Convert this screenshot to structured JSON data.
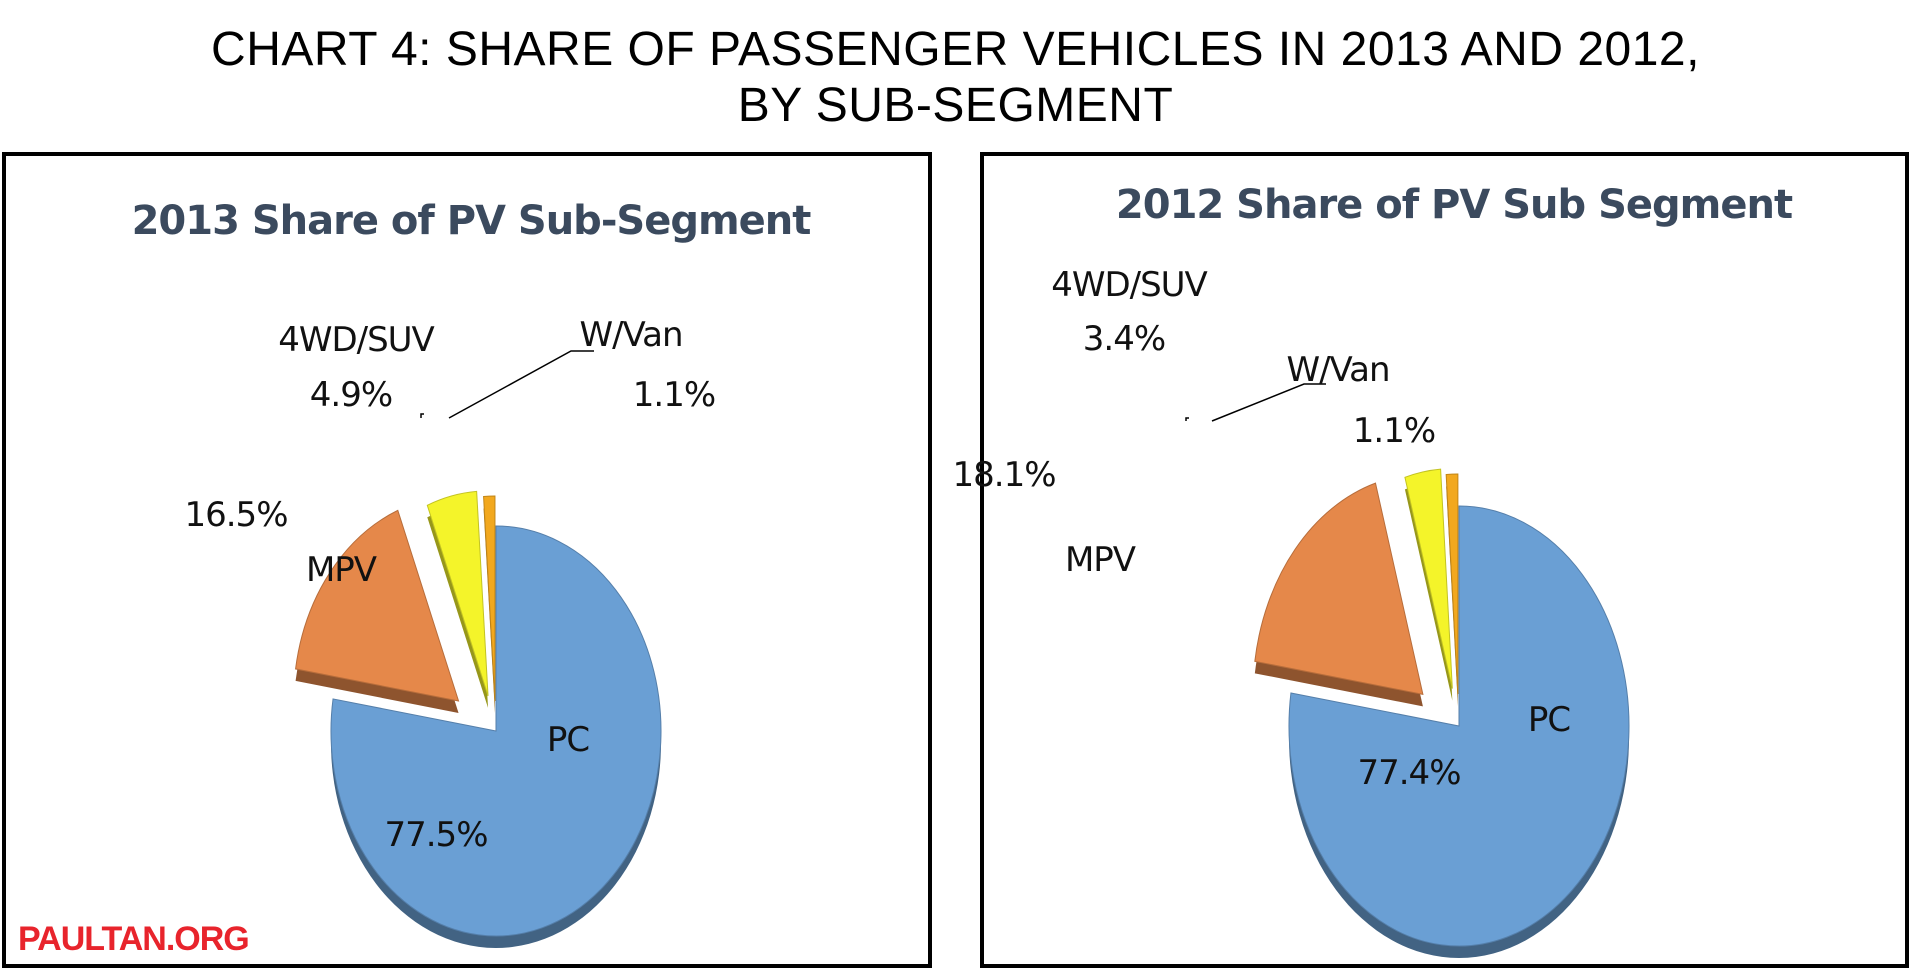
{
  "header": {
    "title_line1": "CHART 4: SHARE OF PASSENGER VEHICLES IN 2013 AND 2012,",
    "title_line2": "BY SUB-SEGMENT"
  },
  "watermark": "PAULTAN.ORG",
  "colors": {
    "PC": "#6a9fd4",
    "MPV": "#e5884a",
    "4WD/SUV": "#f4f42a",
    "W/Van": "#f2a81e",
    "title_text": "#3b4a5e"
  },
  "chart_data": [
    {
      "type": "pie",
      "title": "2013 Share of PV Sub-Segment",
      "categories": [
        "PC",
        "MPV",
        "4WD/SUV",
        "W/Van"
      ],
      "values": [
        77.5,
        16.5,
        4.9,
        1.1
      ],
      "value_labels": [
        "77.5%",
        "16.5%",
        "4.9%",
        "1.1%"
      ],
      "exploded": true,
      "style": "3d"
    },
    {
      "type": "pie",
      "title": "2012 Share of PV Sub Segment",
      "categories": [
        "PC",
        "MPV",
        "4WD/SUV",
        "W/Van"
      ],
      "values": [
        77.4,
        18.1,
        3.4,
        1.1
      ],
      "value_labels": [
        "77.4%",
        "18.1%",
        "3.4%",
        "1.1%"
      ],
      "exploded": true,
      "style": "3d"
    }
  ]
}
